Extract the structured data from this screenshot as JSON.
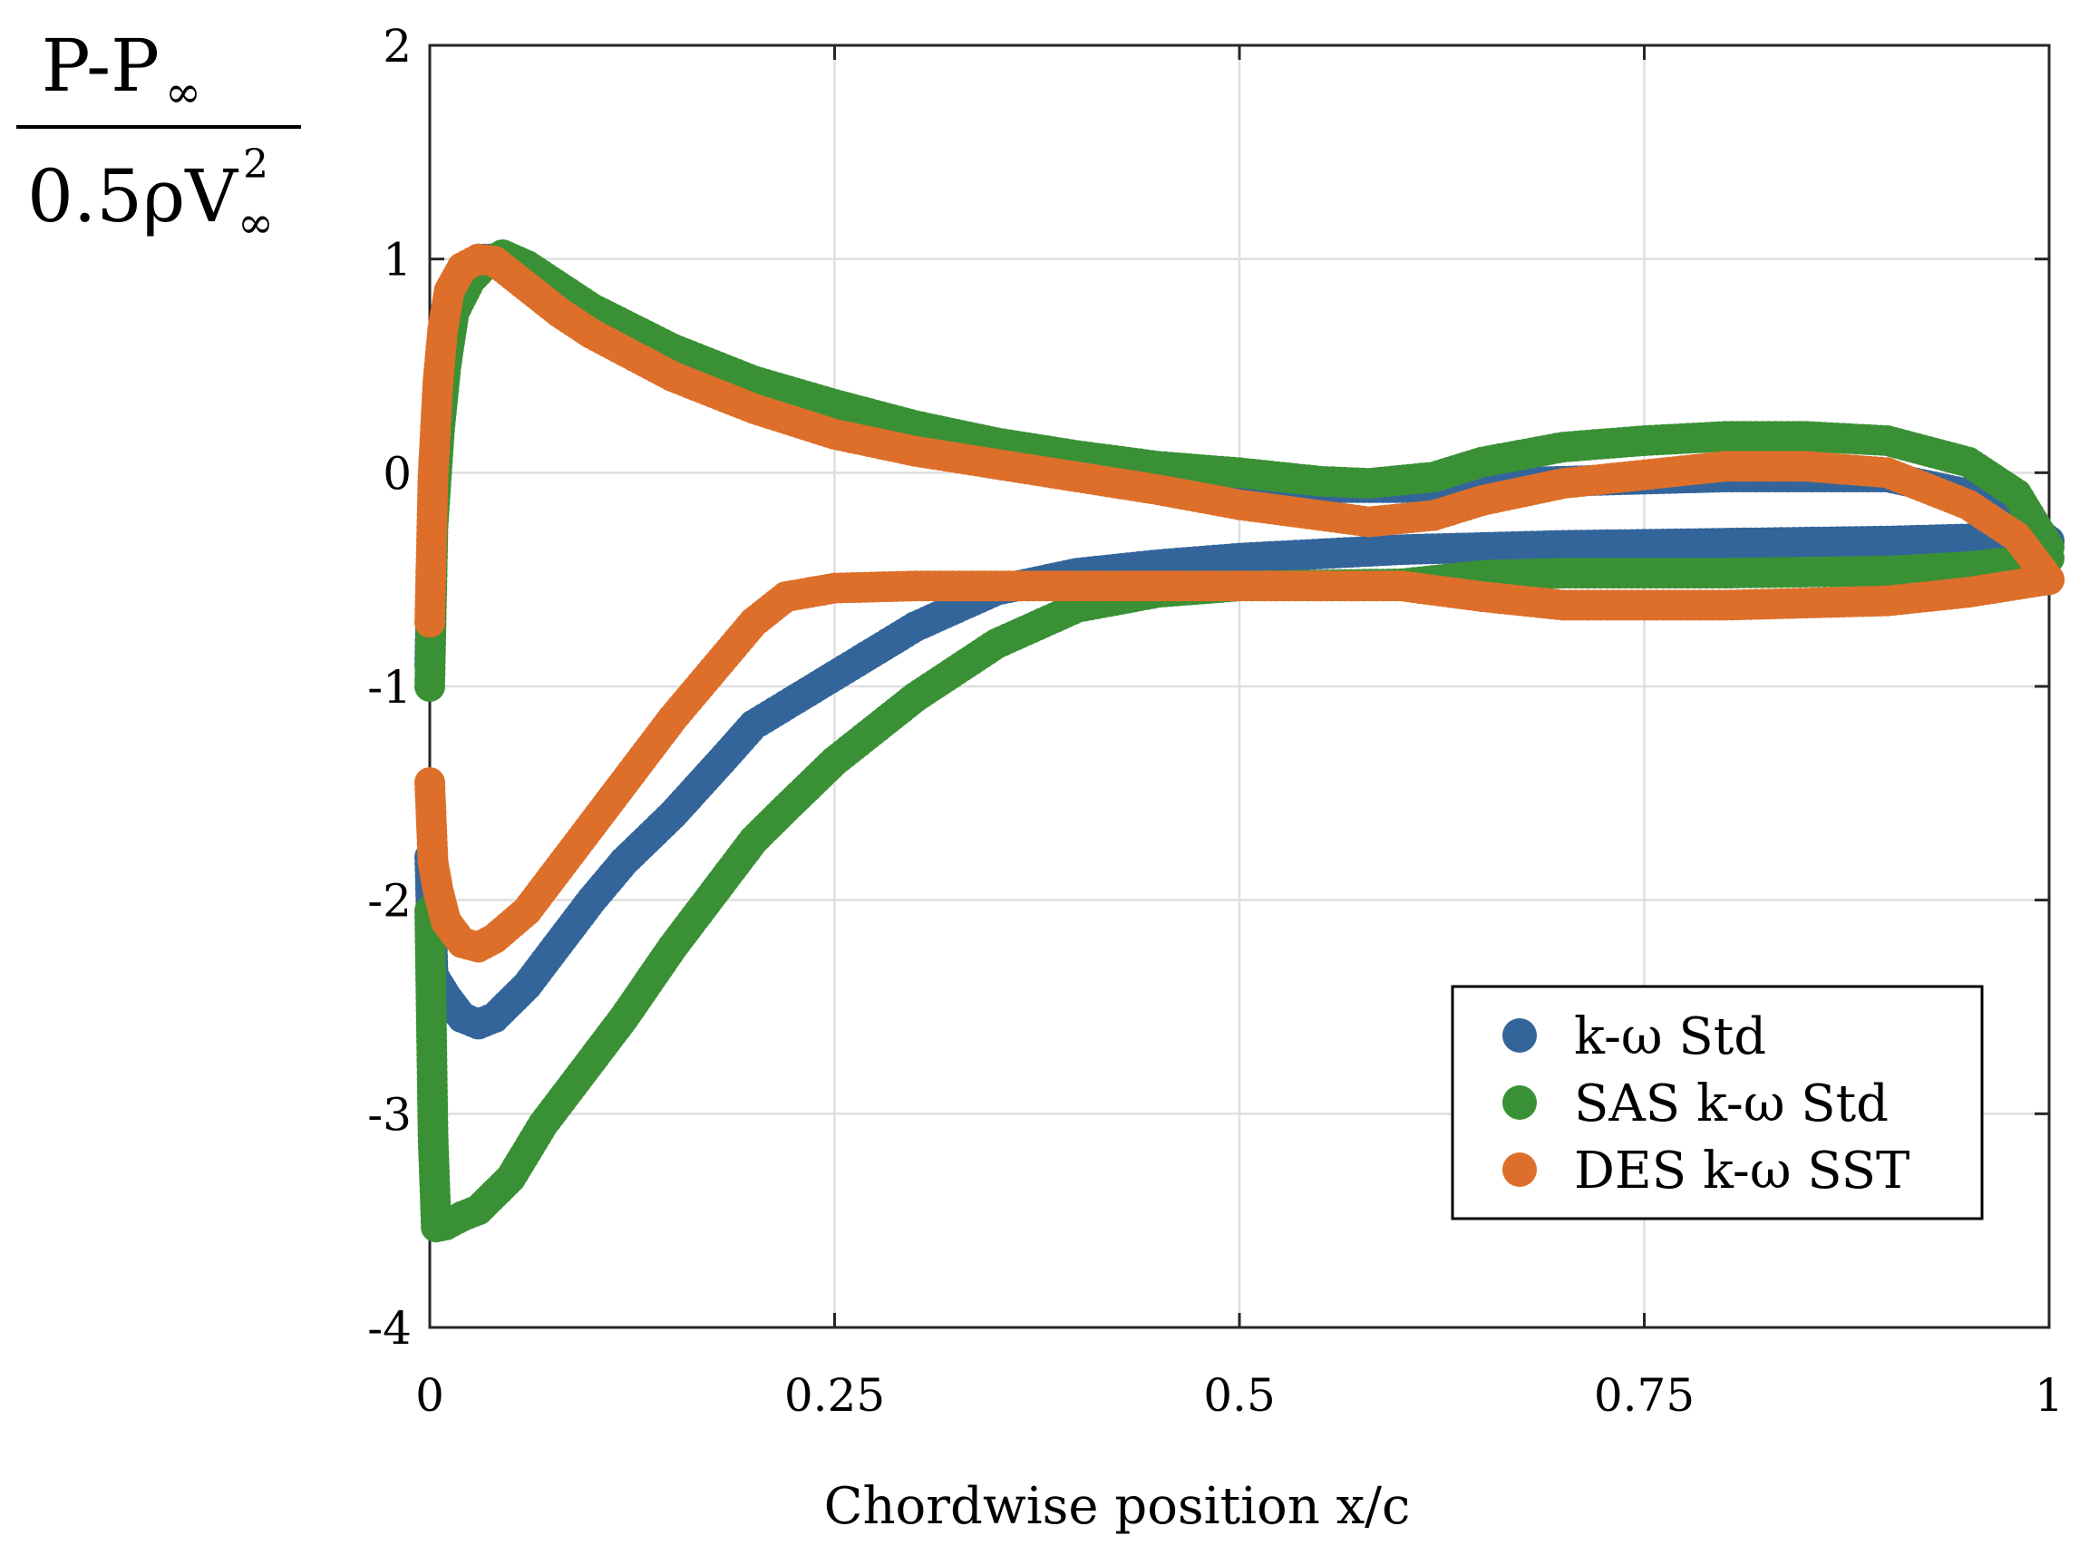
{
  "chart_data": {
    "type": "scatter",
    "title": "",
    "xlabel": "Chordwise position x/c",
    "ylabel": {
      "numerator_base": "P-P",
      "numerator_sub": "∞",
      "denominator_base": "0.5ρV",
      "denominator_sup": "2",
      "denominator_sub": "∞"
    },
    "xlim": [
      0,
      1
    ],
    "ylim": [
      -4,
      2
    ],
    "xticks": [
      0,
      0.25,
      0.5,
      0.75,
      1
    ],
    "xtick_labels": [
      "0",
      "0.25",
      "0.5",
      "0.75",
      "1"
    ],
    "yticks": [
      2,
      1,
      0,
      -1,
      -2,
      -3,
      -4
    ],
    "ytick_labels": [
      "2",
      "1",
      "0",
      "-1",
      "-2",
      "-3",
      "-4"
    ],
    "grid": true,
    "legend_position": "bottom-right",
    "series": [
      {
        "name": "k-ω Std",
        "color": "#33659b",
        "upper": [
          [
            0,
            -0.9
          ],
          [
            0.002,
            -0.15
          ],
          [
            0.005,
            0.3
          ],
          [
            0.008,
            0.6
          ],
          [
            0.012,
            0.8
          ],
          [
            0.02,
            0.95
          ],
          [
            0.03,
            1.0
          ],
          [
            0.04,
            1.0
          ],
          [
            0.06,
            0.9
          ],
          [
            0.08,
            0.8
          ],
          [
            0.1,
            0.7
          ],
          [
            0.15,
            0.5
          ],
          [
            0.2,
            0.35
          ],
          [
            0.25,
            0.25
          ],
          [
            0.3,
            0.15
          ],
          [
            0.35,
            0.08
          ],
          [
            0.4,
            0.03
          ],
          [
            0.45,
            -0.02
          ],
          [
            0.5,
            -0.05
          ],
          [
            0.55,
            -0.07
          ],
          [
            0.6,
            -0.07
          ],
          [
            0.65,
            -0.05
          ],
          [
            0.7,
            -0.04
          ],
          [
            0.75,
            -0.03
          ],
          [
            0.8,
            -0.02
          ],
          [
            0.85,
            -0.02
          ],
          [
            0.9,
            -0.02
          ],
          [
            0.95,
            -0.1
          ],
          [
            0.98,
            -0.2
          ],
          [
            1.0,
            -0.32
          ]
        ],
        "lower": [
          [
            0,
            -1.8
          ],
          [
            0.002,
            -2.35
          ],
          [
            0.01,
            -2.45
          ],
          [
            0.02,
            -2.55
          ],
          [
            0.03,
            -2.58
          ],
          [
            0.04,
            -2.55
          ],
          [
            0.06,
            -2.4
          ],
          [
            0.08,
            -2.2
          ],
          [
            0.1,
            -2.0
          ],
          [
            0.12,
            -1.82
          ],
          [
            0.15,
            -1.6
          ],
          [
            0.18,
            -1.35
          ],
          [
            0.2,
            -1.18
          ],
          [
            0.25,
            -0.95
          ],
          [
            0.3,
            -0.72
          ],
          [
            0.35,
            -0.55
          ],
          [
            0.4,
            -0.47
          ],
          [
            0.45,
            -0.43
          ],
          [
            0.5,
            -0.4
          ],
          [
            0.55,
            -0.38
          ],
          [
            0.6,
            -0.36
          ],
          [
            0.7,
            -0.34
          ],
          [
            0.8,
            -0.33
          ],
          [
            0.9,
            -0.32
          ],
          [
            0.95,
            -0.31
          ],
          [
            1.0,
            -0.32
          ]
        ]
      },
      {
        "name": "SAS k-ω Std",
        "color": "#3a9135",
        "upper": [
          [
            0,
            -1.0
          ],
          [
            0.002,
            -0.25
          ],
          [
            0.006,
            0.2
          ],
          [
            0.01,
            0.5
          ],
          [
            0.015,
            0.75
          ],
          [
            0.025,
            0.9
          ],
          [
            0.035,
            0.98
          ],
          [
            0.045,
            1.02
          ],
          [
            0.06,
            0.97
          ],
          [
            0.08,
            0.87
          ],
          [
            0.1,
            0.77
          ],
          [
            0.15,
            0.58
          ],
          [
            0.2,
            0.43
          ],
          [
            0.25,
            0.32
          ],
          [
            0.3,
            0.22
          ],
          [
            0.35,
            0.14
          ],
          [
            0.4,
            0.08
          ],
          [
            0.45,
            0.03
          ],
          [
            0.5,
            0.0
          ],
          [
            0.55,
            -0.04
          ],
          [
            0.58,
            -0.05
          ],
          [
            0.62,
            -0.02
          ],
          [
            0.65,
            0.05
          ],
          [
            0.7,
            0.12
          ],
          [
            0.75,
            0.15
          ],
          [
            0.8,
            0.17
          ],
          [
            0.85,
            0.17
          ],
          [
            0.9,
            0.15
          ],
          [
            0.95,
            0.05
          ],
          [
            0.98,
            -0.1
          ],
          [
            1.0,
            -0.35
          ]
        ],
        "lower": [
          [
            0,
            -2.05
          ],
          [
            0.002,
            -3.1
          ],
          [
            0.004,
            -3.53
          ],
          [
            0.01,
            -3.52
          ],
          [
            0.02,
            -3.48
          ],
          [
            0.03,
            -3.45
          ],
          [
            0.05,
            -3.3
          ],
          [
            0.07,
            -3.05
          ],
          [
            0.1,
            -2.75
          ],
          [
            0.12,
            -2.55
          ],
          [
            0.15,
            -2.22
          ],
          [
            0.18,
            -1.92
          ],
          [
            0.2,
            -1.72
          ],
          [
            0.22,
            -1.57
          ],
          [
            0.25,
            -1.35
          ],
          [
            0.3,
            -1.05
          ],
          [
            0.35,
            -0.8
          ],
          [
            0.4,
            -0.63
          ],
          [
            0.45,
            -0.56
          ],
          [
            0.5,
            -0.53
          ],
          [
            0.6,
            -0.52
          ],
          [
            0.65,
            -0.48
          ],
          [
            0.7,
            -0.47
          ],
          [
            0.8,
            -0.47
          ],
          [
            0.9,
            -0.46
          ],
          [
            0.95,
            -0.44
          ],
          [
            1.0,
            -0.4
          ]
        ]
      },
      {
        "name": "DES k-ω SST",
        "color": "#dd6f2a",
        "upper": [
          [
            0,
            -0.7
          ],
          [
            0.002,
            -0.02
          ],
          [
            0.005,
            0.42
          ],
          [
            0.008,
            0.67
          ],
          [
            0.012,
            0.85
          ],
          [
            0.02,
            0.96
          ],
          [
            0.03,
            1.0
          ],
          [
            0.04,
            0.99
          ],
          [
            0.06,
            0.87
          ],
          [
            0.08,
            0.75
          ],
          [
            0.1,
            0.65
          ],
          [
            0.15,
            0.45
          ],
          [
            0.2,
            0.3
          ],
          [
            0.25,
            0.18
          ],
          [
            0.3,
            0.1
          ],
          [
            0.35,
            0.04
          ],
          [
            0.4,
            -0.02
          ],
          [
            0.45,
            -0.08
          ],
          [
            0.5,
            -0.15
          ],
          [
            0.55,
            -0.2
          ],
          [
            0.58,
            -0.23
          ],
          [
            0.62,
            -0.2
          ],
          [
            0.65,
            -0.13
          ],
          [
            0.7,
            -0.05
          ],
          [
            0.75,
            -0.01
          ],
          [
            0.8,
            0.03
          ],
          [
            0.85,
            0.03
          ],
          [
            0.9,
            0.0
          ],
          [
            0.95,
            -0.15
          ],
          [
            0.98,
            -0.3
          ],
          [
            1.0,
            -0.5
          ]
        ],
        "lower": [
          [
            0,
            -1.45
          ],
          [
            0.002,
            -1.82
          ],
          [
            0.005,
            -1.95
          ],
          [
            0.01,
            -2.1
          ],
          [
            0.02,
            -2.2
          ],
          [
            0.03,
            -2.22
          ],
          [
            0.04,
            -2.18
          ],
          [
            0.06,
            -2.05
          ],
          [
            0.08,
            -1.85
          ],
          [
            0.1,
            -1.65
          ],
          [
            0.12,
            -1.45
          ],
          [
            0.15,
            -1.15
          ],
          [
            0.18,
            -0.88
          ],
          [
            0.2,
            -0.7
          ],
          [
            0.22,
            -0.58
          ],
          [
            0.25,
            -0.54
          ],
          [
            0.3,
            -0.53
          ],
          [
            0.4,
            -0.53
          ],
          [
            0.5,
            -0.53
          ],
          [
            0.6,
            -0.53
          ],
          [
            0.65,
            -0.58
          ],
          [
            0.7,
            -0.62
          ],
          [
            0.8,
            -0.62
          ],
          [
            0.9,
            -0.6
          ],
          [
            0.95,
            -0.56
          ],
          [
            1.0,
            -0.5
          ]
        ]
      }
    ]
  }
}
